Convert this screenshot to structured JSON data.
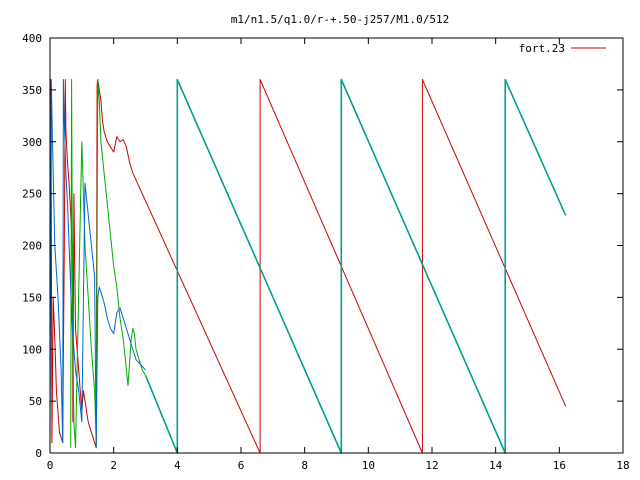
{
  "chart_data": {
    "type": "line",
    "title": "m1/n1.5/q1.0/r-+.50-j257/M1.0/512",
    "xlabel": "",
    "ylabel": "",
    "xlim": [
      0,
      18
    ],
    "ylim": [
      0,
      400
    ],
    "x_ticks": [
      "0",
      "2",
      "4",
      "6",
      "8",
      "10",
      "12",
      "14",
      "16",
      "18"
    ],
    "y_ticks": [
      "0",
      "50",
      "100",
      "150",
      "200",
      "250",
      "300",
      "350",
      "400"
    ],
    "grid": false,
    "legend": {
      "position": "top-right",
      "entries": [
        {
          "label": "fort.23",
          "color": "#cc0000"
        }
      ]
    },
    "colors": {
      "red": "#cc0000",
      "green": "#00aa00",
      "blue": "#0066cc",
      "teal": "#009f8f"
    },
    "series": [
      {
        "name": "fort.23",
        "color": "#cc0000",
        "x": [
          0.0,
          0.03,
          0.06,
          0.1,
          0.15,
          0.2,
          0.3,
          0.4,
          0.45,
          0.48,
          0.5,
          0.55,
          0.6,
          0.65,
          0.7,
          0.72,
          0.75,
          0.8,
          0.9,
          1.0,
          1.05,
          1.1,
          1.2,
          1.3,
          1.4,
          1.45,
          1.48,
          1.5,
          1.55,
          1.6,
          1.65,
          1.7,
          1.8,
          2.0,
          2.1,
          2.2,
          2.3,
          2.4,
          2.5,
          2.6,
          6.6,
          6.6,
          11.7,
          11.7,
          16.2
        ],
        "y": [
          345,
          360,
          10,
          150,
          110,
          60,
          20,
          10,
          200,
          360,
          310,
          280,
          260,
          230,
          200,
          30,
          250,
          120,
          80,
          40,
          60,
          50,
          30,
          20,
          10,
          5,
          355,
          360,
          350,
          340,
          320,
          310,
          300,
          290,
          305,
          300,
          302,
          295,
          280,
          270,
          0,
          360,
          0,
          360,
          45
        ]
      },
      {
        "color": "#00aa00",
        "x": [
          0.65,
          0.68,
          0.7,
          0.72,
          0.75,
          0.8,
          1.0,
          1.1,
          1.2,
          1.3,
          1.4,
          1.45,
          1.5,
          1.52,
          1.55,
          1.6,
          1.7,
          1.8,
          2.0,
          2.1,
          2.2,
          2.3,
          2.4,
          2.45,
          2.55,
          2.6,
          2.65,
          2.7,
          2.8,
          2.9,
          3.0
        ],
        "y": [
          5,
          360,
          200,
          100,
          30,
          5,
          300,
          200,
          150,
          100,
          60,
          10,
          360,
          350,
          340,
          300,
          270,
          240,
          180,
          160,
          130,
          110,
          80,
          65,
          110,
          120,
          115,
          100,
          90,
          80,
          75
        ]
      },
      {
        "color": "#0066cc",
        "x": [
          0.0,
          0.04,
          0.08,
          0.15,
          0.25,
          0.35,
          0.4,
          0.42,
          0.45,
          0.5,
          0.55,
          0.6,
          0.7,
          0.8,
          0.9,
          1.0,
          1.1,
          1.2,
          1.3,
          1.4,
          1.45,
          1.5,
          1.55,
          1.6,
          1.7,
          1.8,
          1.9,
          2.0,
          2.1,
          2.2,
          2.3,
          2.5,
          2.7,
          3.0
        ],
        "y": [
          10,
          360,
          300,
          200,
          150,
          80,
          10,
          360,
          320,
          270,
          240,
          200,
          120,
          80,
          60,
          30,
          260,
          230,
          200,
          170,
          5,
          150,
          160,
          155,
          145,
          130,
          120,
          115,
          135,
          140,
          130,
          110,
          90,
          80
        ]
      },
      {
        "color": "#009f8f",
        "x": [
          3.0,
          4.0,
          4.0,
          9.15,
          9.15,
          14.3,
          14.3,
          16.2
        ],
        "y": [
          75,
          0,
          360,
          0,
          360,
          0,
          360,
          229
        ]
      }
    ]
  }
}
